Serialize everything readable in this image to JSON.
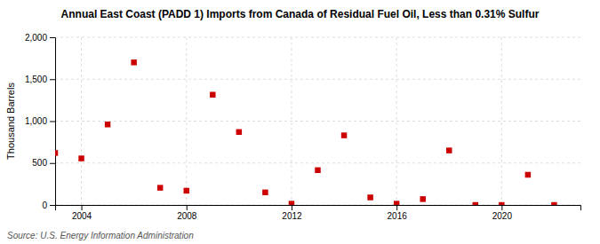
{
  "chart_data": {
    "type": "scatter",
    "title": "Annual East Coast (PADD 1) Imports from Canada of Residual Fuel Oil, Less than 0.31% Sulfur",
    "y_label": "Thousand Barrels",
    "source": "Source: U.S. Energy Information Administration",
    "x": [
      2003,
      2004,
      2005,
      2006,
      2007,
      2008,
      2009,
      2010,
      2011,
      2012,
      2013,
      2014,
      2015,
      2016,
      2017,
      2018,
      2019,
      2020,
      2021,
      2022
    ],
    "values": [
      620,
      555,
      960,
      1700,
      205,
      170,
      1315,
      870,
      150,
      15,
      415,
      830,
      90,
      15,
      70,
      650,
      0,
      0,
      360,
      0
    ],
    "color": "#cc0000",
    "marker": "square",
    "xlim": [
      2003.0,
      2023.0
    ],
    "ylim": [
      0,
      2000
    ],
    "xticks": [
      2004,
      2008,
      2012,
      2016,
      2020
    ],
    "yticks": [
      0,
      500,
      {
        "value": 1000,
        "label": "1,000"
      },
      {
        "value": 1500,
        "label": "1,500"
      },
      {
        "value": 2000,
        "label": "2,000"
      }
    ],
    "grid": true
  }
}
